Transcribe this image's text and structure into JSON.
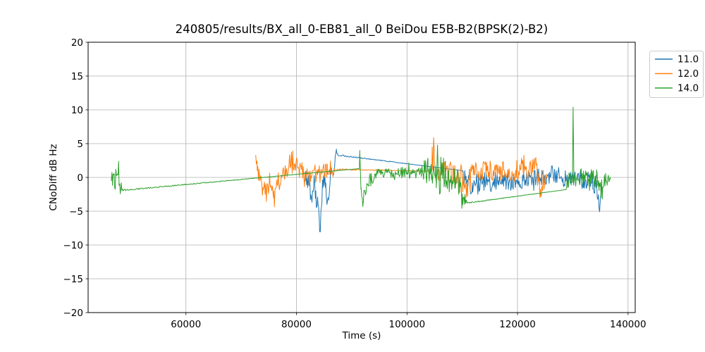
{
  "figure": {
    "kind": "matplotlib-line-plot",
    "background": "#ffffff"
  },
  "chart_data": {
    "type": "line",
    "title": "240805/results/BX_all_0-EB81_all_0 BeiDou E5B-B2(BPSK(2)-B2)",
    "xlabel": "Time (s)",
    "ylabel": "CNoDiff dB Hz",
    "xlim": [
      42300,
      141300
    ],
    "ylim": [
      -20,
      20
    ],
    "xticks": [
      60000,
      80000,
      100000,
      120000,
      140000
    ],
    "xticklabels": [
      "60000",
      "80000",
      "100000",
      "120000",
      "140000"
    ],
    "yticks": [
      -20,
      -15,
      -10,
      -5,
      0,
      5,
      10,
      15,
      20
    ],
    "yticklabels": [
      "−20",
      "−15",
      "−10",
      "−5",
      "0",
      "5",
      "10",
      "15",
      "20"
    ],
    "grid": true,
    "colors": {
      "grid": "#b0b0b0",
      "spine": "#000000",
      "text": "#000000",
      "legend_border": "#cccccc"
    },
    "legend": {
      "position": "upper-right-outside",
      "entries": [
        "11.0",
        "12.0",
        "14.0"
      ]
    },
    "note": "Noisy time series approximated by keypoints [time_s, value_dB, noise_amplitude_dB]; long spans with amplitude 0 are straight gap-connector lines as drawn in the source plot.",
    "series": [
      {
        "name": "11.0",
        "color": "#1f77b4",
        "keypoints": [
          [
            81500,
            0.8,
            1.0
          ],
          [
            81900,
            -0.2,
            1.4
          ],
          [
            82300,
            -1.0,
            1.9
          ],
          [
            82700,
            -3.0,
            2.4
          ],
          [
            83100,
            -1.5,
            2.0
          ],
          [
            83500,
            -2.0,
            2.4
          ],
          [
            83900,
            -4.0,
            2.6
          ],
          [
            84200,
            -8.0,
            3.2
          ],
          [
            84500,
            -4.5,
            2.6
          ],
          [
            84800,
            -1.5,
            2.0
          ],
          [
            85300,
            -0.8,
            1.8
          ],
          [
            85700,
            -3.0,
            2.4
          ],
          [
            86100,
            -0.5,
            1.8
          ],
          [
            86500,
            0.8,
            1.6
          ],
          [
            86900,
            1.5,
            1.8
          ],
          [
            87250,
            3.9,
            0.5
          ],
          [
            87500,
            3.3,
            0.1
          ],
          [
            110100,
            1.0,
            0.0
          ],
          [
            110250,
            -0.5,
            2.0
          ],
          [
            110700,
            -1.0,
            2.3
          ],
          [
            111200,
            0.0,
            2.2
          ],
          [
            111800,
            -0.8,
            2.0
          ],
          [
            112400,
            -1.0,
            1.7
          ],
          [
            113500,
            -0.7,
            1.5
          ],
          [
            115000,
            -0.8,
            1.5
          ],
          [
            116500,
            -0.5,
            1.4
          ],
          [
            118000,
            -0.7,
            1.5
          ],
          [
            119500,
            -0.4,
            1.4
          ],
          [
            121000,
            -0.5,
            1.4
          ],
          [
            122500,
            -0.3,
            1.3
          ],
          [
            124000,
            0.0,
            1.3
          ],
          [
            125500,
            0.2,
            1.4
          ],
          [
            126800,
            0.4,
            1.5
          ],
          [
            128000,
            -0.1,
            1.3
          ],
          [
            129300,
            -0.3,
            1.3
          ],
          [
            130600,
            -0.4,
            1.4
          ],
          [
            132000,
            -0.4,
            1.4
          ],
          [
            133300,
            -0.6,
            1.5
          ],
          [
            134200,
            -1.0,
            1.7
          ],
          [
            134750,
            -4.6,
            1.8
          ],
          [
            135200,
            -1.5,
            0.5
          ]
        ]
      },
      {
        "name": "12.0",
        "color": "#ff7f0e",
        "keypoints": [
          [
            72630,
            3.3,
            0.3
          ],
          [
            72900,
            1.0,
            1.5
          ],
          [
            73400,
            -0.5,
            1.8
          ],
          [
            74000,
            -1.8,
            1.8
          ],
          [
            74600,
            -2.3,
            2.0
          ],
          [
            75200,
            -0.8,
            1.8
          ],
          [
            75900,
            -2.0,
            1.8
          ],
          [
            76600,
            -1.0,
            1.6
          ],
          [
            77300,
            0.0,
            1.4
          ],
          [
            78100,
            0.8,
            1.4
          ],
          [
            79000,
            2.4,
            1.9
          ],
          [
            79600,
            2.0,
            1.7
          ],
          [
            80200,
            1.4,
            1.5
          ],
          [
            80900,
            1.2,
            1.4
          ],
          [
            81700,
            0.6,
            1.4
          ],
          [
            82600,
            0.2,
            1.6
          ],
          [
            83600,
            0.4,
            1.5
          ],
          [
            84600,
            0.6,
            1.4
          ],
          [
            85600,
            0.8,
            1.2
          ],
          [
            86500,
            0.9,
            1.1
          ],
          [
            87400,
            1.2,
            0.1
          ],
          [
            104500,
            0.9,
            0.0
          ],
          [
            104560,
            4.5,
            0.5
          ],
          [
            104700,
            1.5,
            1.2
          ],
          [
            104820,
            5.9,
            0.4
          ],
          [
            104980,
            2.0,
            1.5
          ],
          [
            105300,
            0.3,
            2.0
          ],
          [
            106000,
            0.6,
            1.9
          ],
          [
            107000,
            0.8,
            1.8
          ],
          [
            108000,
            0.4,
            2.0
          ],
          [
            109000,
            0.0,
            2.0
          ],
          [
            110000,
            -0.6,
            2.1
          ],
          [
            111000,
            -0.8,
            2.2
          ],
          [
            112000,
            0.4,
            1.8
          ],
          [
            113000,
            0.9,
            1.5
          ],
          [
            114500,
            1.0,
            1.5
          ],
          [
            116000,
            0.9,
            1.5
          ],
          [
            117500,
            1.1,
            1.6
          ],
          [
            119000,
            0.9,
            1.6
          ],
          [
            120500,
            1.2,
            1.7
          ],
          [
            122000,
            1.0,
            1.7
          ],
          [
            123400,
            1.8,
            1.9
          ],
          [
            124200,
            -2.8,
            1.4
          ],
          [
            124700,
            0.0,
            1.3
          ],
          [
            125300,
            0.5,
            0.6
          ]
        ]
      },
      {
        "name": "14.0",
        "color": "#2ca02c",
        "keypoints": [
          [
            46500,
            -0.5,
            0.8
          ],
          [
            46800,
            0.5,
            1.8
          ],
          [
            47100,
            -1.5,
            1.8
          ],
          [
            47500,
            0.3,
            2.0
          ],
          [
            47900,
            -1.2,
            2.2
          ],
          [
            48300,
            -0.8,
            1.5
          ],
          [
            48550,
            -1.9,
            0.1
          ],
          [
            91390,
            1.3,
            0.0
          ],
          [
            91450,
            4.0,
            0.3
          ],
          [
            91700,
            -1.5,
            1.5
          ],
          [
            92000,
            -4.3,
            1.0
          ],
          [
            92400,
            -2.0,
            1.5
          ],
          [
            92900,
            -1.0,
            1.2
          ],
          [
            93600,
            -0.2,
            1.0
          ],
          [
            94500,
            0.4,
            0.9
          ],
          [
            95500,
            0.6,
            0.8
          ],
          [
            97000,
            0.7,
            0.8
          ],
          [
            98500,
            0.6,
            0.9
          ],
          [
            100000,
            0.8,
            0.9
          ],
          [
            101500,
            0.7,
            1.0
          ],
          [
            102800,
            1.0,
            1.5
          ],
          [
            103800,
            1.0,
            2.0
          ],
          [
            104500,
            0.5,
            2.5
          ],
          [
            105200,
            1.5,
            2.8
          ],
          [
            105800,
            0.0,
            3.0
          ],
          [
            106500,
            0.5,
            2.8
          ],
          [
            107200,
            -0.5,
            2.8
          ],
          [
            108000,
            -0.5,
            2.5
          ],
          [
            108800,
            -1.0,
            2.5
          ],
          [
            109600,
            -1.5,
            2.2
          ],
          [
            110100,
            -4.0,
            1.8
          ],
          [
            110500,
            -2.5,
            1.5
          ],
          [
            110850,
            -3.8,
            0.1
          ],
          [
            128770,
            -1.8,
            0.0
          ],
          [
            129100,
            -0.8,
            1.5
          ],
          [
            129600,
            -0.5,
            1.6
          ],
          [
            129950,
            0.0,
            1.0
          ],
          [
            130060,
            10.4,
            0.2
          ],
          [
            130200,
            -0.8,
            1.2
          ],
          [
            130700,
            -0.3,
            1.6
          ],
          [
            131300,
            0.3,
            1.6
          ],
          [
            132000,
            -0.5,
            1.8
          ],
          [
            132700,
            -1.2,
            2.0
          ],
          [
            133400,
            0.0,
            1.6
          ],
          [
            134100,
            -0.4,
            1.6
          ],
          [
            134800,
            -0.8,
            1.8
          ],
          [
            135400,
            -1.5,
            2.0
          ],
          [
            136000,
            -0.5,
            1.5
          ],
          [
            136800,
            -0.3,
            0.8
          ]
        ]
      }
    ]
  }
}
